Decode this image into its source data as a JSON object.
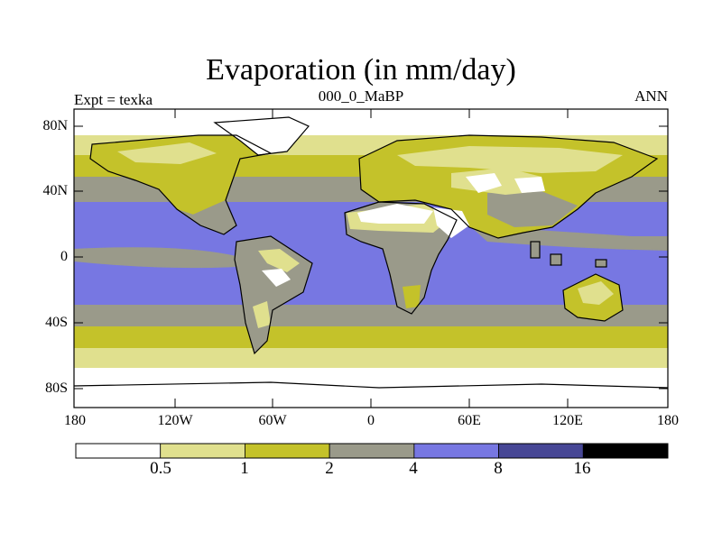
{
  "title": "Evaporation (in mm/day)",
  "left_label": "Expt = texka",
  "center_label": "000_0_MaBP",
  "right_label": "ANN",
  "map": {
    "lon_ticks": [
      "180",
      "120W",
      "60W",
      "0",
      "60E",
      "120E",
      "180"
    ],
    "lat_ticks": [
      "80N",
      "40N",
      "0",
      "40S",
      "80S"
    ],
    "ocean_color": "#7777e2",
    "land_color": "#9a9a8a",
    "outline_color": "#000000"
  },
  "colorbar": {
    "levels": [
      "0.5",
      "1",
      "2",
      "4",
      "8",
      "16"
    ],
    "colors": [
      "#ffffff",
      "#e0e08e",
      "#c4c22a",
      "#9a9a8a",
      "#7777e2",
      "#474795",
      "#000000"
    ]
  }
}
